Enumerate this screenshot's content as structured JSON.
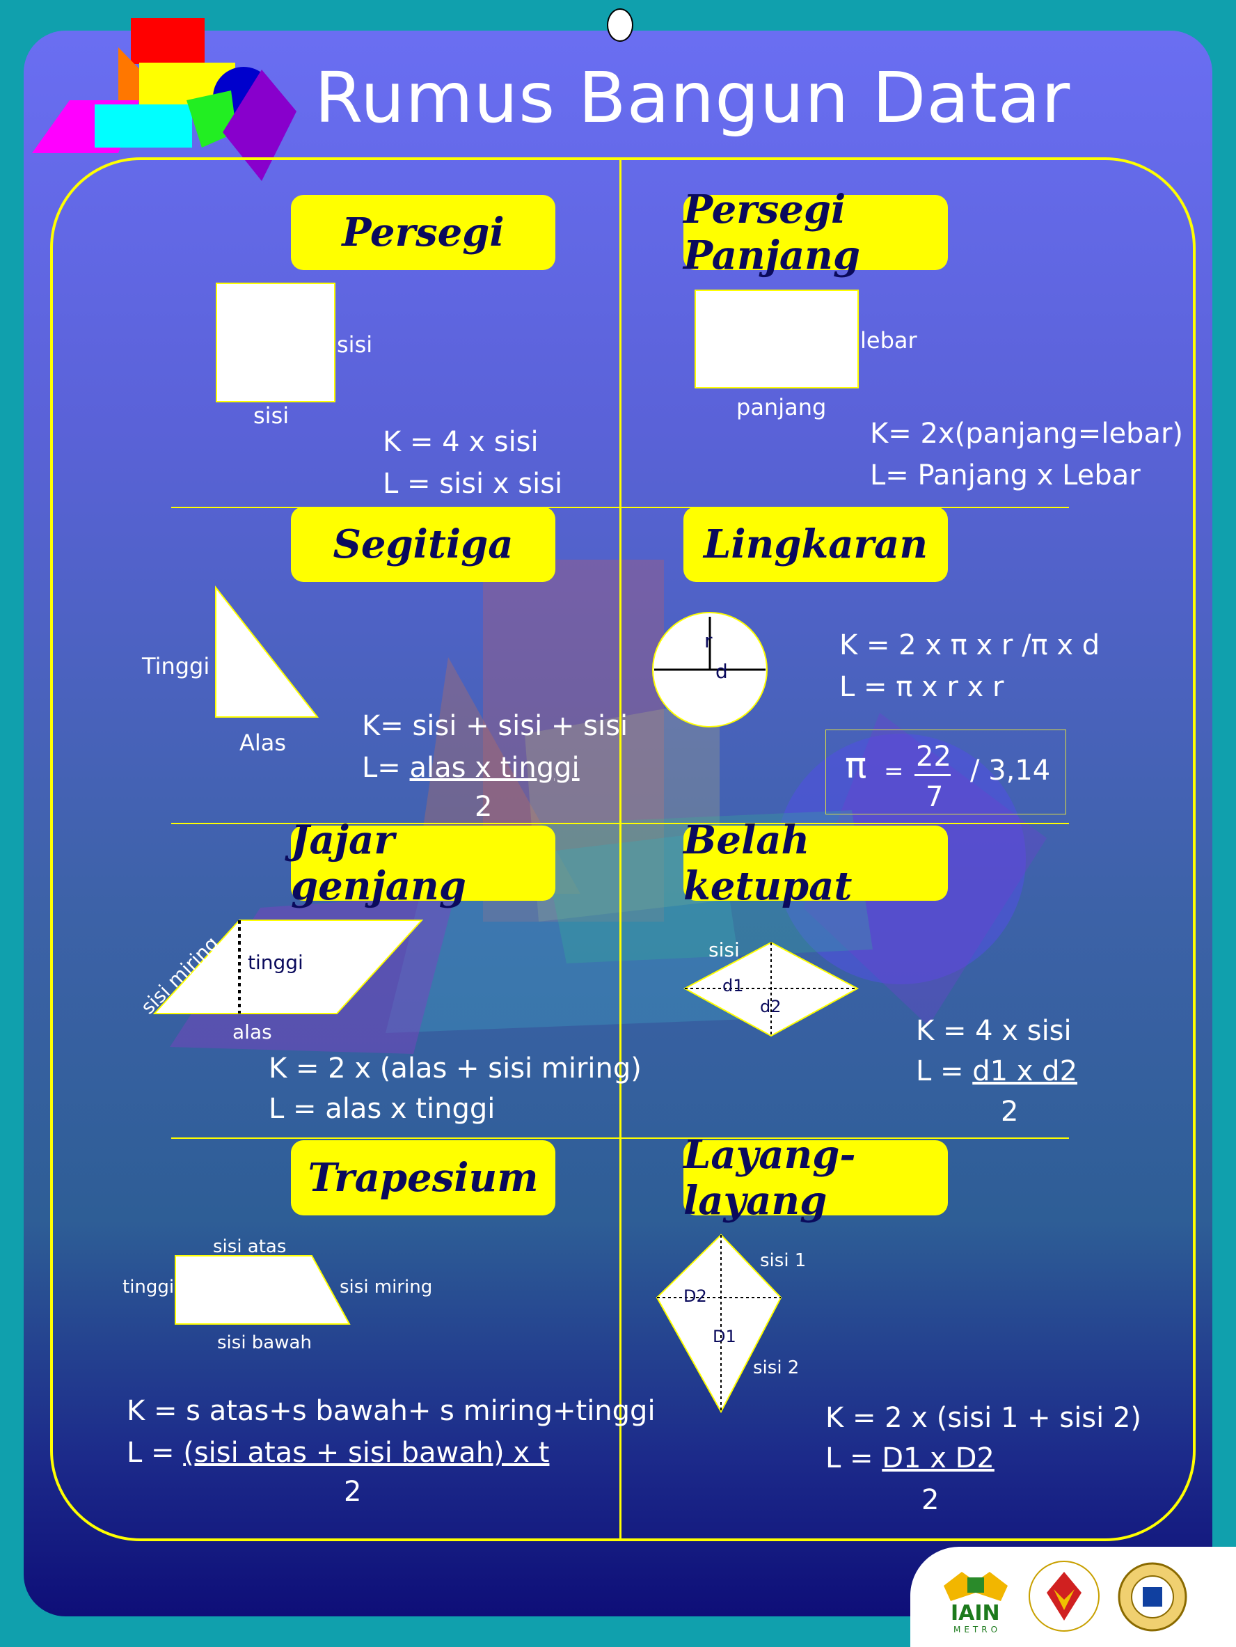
{
  "title": "Rumus Bangun Datar",
  "sections": {
    "persegi": {
      "heading": "Persegi",
      "side_label": "sisi",
      "bottom_label": "sisi",
      "k": "K = 4 x sisi",
      "l": "L = sisi x sisi"
    },
    "persegi_panjang": {
      "heading": "Persegi Panjang",
      "side_label": "lebar",
      "bottom_label": "panjang",
      "k": "K= 2x(panjang=lebar)",
      "l": "L= Panjang x Lebar"
    },
    "segitiga": {
      "heading": "Segitiga",
      "height_label": "Tinggi",
      "base_label": "Alas",
      "k": "K= sisi + sisi + sisi",
      "l_prefix": "L= ",
      "l_num": "alas x tinggi",
      "l_den": "2"
    },
    "lingkaran": {
      "heading": "Lingkaran",
      "r_label": "r",
      "d_label": "d",
      "k": "K = 2 x π x r /π x d",
      "l": "L = π x r x r",
      "pi_symbol": "π",
      "pi_eq": "=",
      "pi_num": "22",
      "pi_den": "7",
      "pi_alt": "/ 3,14"
    },
    "jajar_genjang": {
      "heading": "Jajar genjang",
      "slant_label": "sisi miring",
      "height_label": "tinggi",
      "base_label": "alas",
      "k": "K = 2 x (alas + sisi miring)",
      "l": "L = alas x tinggi"
    },
    "belah_ketupat": {
      "heading": "Belah ketupat",
      "side_label": "sisi",
      "d1_label": "d1",
      "d2_label": "d2",
      "k": "K = 4 x sisi",
      "l_prefix": "L = ",
      "l_num": " d1 x d2",
      "l_den": "2"
    },
    "trapesium": {
      "heading": "Trapesium",
      "top_label": "sisi atas",
      "height_label": "tinggi",
      "slant_label": "sisi miring",
      "bottom_label": "sisi bawah",
      "k": "K = s atas+s bawah+ s miring+tinggi",
      "l_prefix": "L = ",
      "l_num": "(sisi atas + sisi bawah) x t",
      "l_den": "2"
    },
    "layang_layang": {
      "heading": "Layang-layang",
      "side1_label": "sisi 1",
      "side2_label": "sisi 2",
      "D2_label": "D2",
      "D1_label": "D1",
      "k": "K = 2 x (sisi 1 + sisi 2)",
      "l_prefix": "L = ",
      "l_num": "D1 x D2",
      "l_den": "2"
    }
  },
  "logos": {
    "iain": "IAIN",
    "iain_sub": "METRO"
  },
  "colors": {
    "accent": "#ffff00",
    "heading_text": "#0a0a5c",
    "panel_top": "#6a6ef2",
    "panel_bottom": "#0e0e78",
    "frame": "#10a0ad"
  }
}
